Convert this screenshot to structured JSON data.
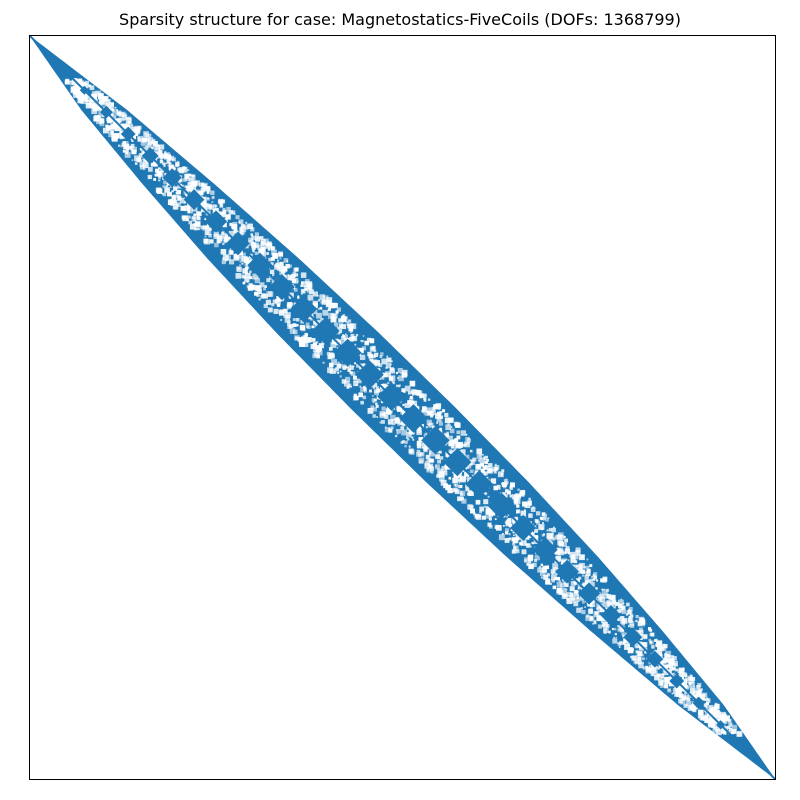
{
  "chart_data": {
    "type": "scatter",
    "subtype": "sparsity-pattern",
    "title": "Sparsity structure for case: Magnetostatics-FiveCoils (DOFs: 1368799)",
    "matrix_size": 1368799,
    "xlim": [
      0,
      1368799
    ],
    "ylim": [
      1368799,
      0
    ],
    "xticks": [],
    "yticks": [],
    "grid": false,
    "legend": "none",
    "marker_color": "#1f77b4",
    "pattern": {
      "structure": "banded",
      "band_center": "main-diagonal",
      "half_bandwidth_profile": [
        {
          "row": 0,
          "half_width": 0
        },
        {
          "row": 136880,
          "half_width": 42000
        },
        {
          "row": 273760,
          "half_width": 66000
        },
        {
          "row": 410640,
          "half_width": 84000
        },
        {
          "row": 547520,
          "half_width": 94000
        },
        {
          "row": 684400,
          "half_width": 97000
        },
        {
          "row": 821279,
          "half_width": 94000
        },
        {
          "row": 958159,
          "half_width": 84000
        },
        {
          "row": 1095039,
          "half_width": 66000
        },
        {
          "row": 1231919,
          "half_width": 42000
        },
        {
          "row": 1368799,
          "half_width": 0
        }
      ],
      "interior_blocks": "dense diagonal blocks with sparse gaps inside the band"
    }
  }
}
